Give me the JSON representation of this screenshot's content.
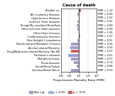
{
  "chart_data": {
    "type": "bar",
    "orientation": "horizontal",
    "title": "Cause of death",
    "xlabel": "Proportionate Mortality Ratio (PMR)",
    "categories": [
      "Bladder ca.",
      "All circulatory diseases",
      "Hypertensive diseases",
      "Ischemic Heart diseases",
      "Benign/My unrelated Brain/Spin",
      "Other Ischemic Heart diseases",
      "Other Heart diseases",
      "Cerebrovascular diseases",
      "Non-Hodgkin's Lymphoma",
      "Nutritional and Metabolic diseases",
      "Alcohol-related Mortality",
      "Drug/Medication related Mortality (No.98)",
      "Parkinson's diseases",
      "Multiple Sclerosis",
      "Renal diseases",
      "Senile/Renal Failure",
      "Infective/Renal Failure"
    ],
    "values": [
      1.14,
      0.94,
      1.02,
      0.92,
      0.88,
      0.94,
      1.06,
      1.07,
      0.91,
      0.55,
      0.54,
      0.57,
      0.41,
      0.57,
      0.74,
      0.88,
      0.55
    ],
    "colors": [
      "#d46060",
      "#a0a0c8",
      "#a0a0c8",
      "#a0a0c8",
      "#a0b8d0",
      "#a0a0c8",
      "#a0a0c8",
      "#a0a0c8",
      "#a0a0c8",
      "#a0a0c8",
      "#a0a0c8",
      "#d46060",
      "#a0a0c8",
      "#a0a0c8",
      "#a0a0c8",
      "#a0a0c8",
      "#a0a0c8"
    ],
    "data_labels": true,
    "value_labels": [
      "PMR = 1.14",
      "PMR = 0.94",
      "PMR = 1.02",
      "PMR = 0.92",
      "PMR = 0.88",
      "PMR = 0.94",
      "PMR = 1.06",
      "PMR = 1.07",
      "PMR = 0.91",
      "PMR = 0.55",
      "PMR = 0.54",
      "PMR = 0.57",
      "PMR = 0.41",
      "PMR = 0.57",
      "PMR = 0.74",
      "PMR = 0.88",
      "PMR = 0.55"
    ],
    "reference_line": 1.0,
    "xlim": [
      0.0,
      2.0
    ],
    "xticks": [
      0.0,
      0.5,
      1.0,
      1.5,
      2.0
    ],
    "grid": true,
    "legend": "lower center",
    "legend_entries": [
      {
        "name": "Not sig.",
        "color": "#a0a0c8"
      },
      {
        "name": "p < 0.05",
        "color": "#a0b8d0"
      },
      {
        "name": "p < 0.01",
        "color": "#d46060"
      }
    ]
  }
}
